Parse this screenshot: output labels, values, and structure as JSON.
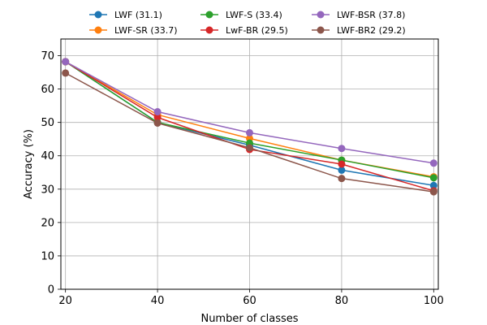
{
  "chart_data": {
    "type": "line",
    "title": "",
    "xlabel": "Number of classes",
    "ylabel": "Accuracy (%)",
    "x": [
      20,
      40,
      60,
      80,
      100
    ],
    "xlim": [
      19,
      101
    ],
    "ylim": [
      0,
      75
    ],
    "xticks": [
      20,
      40,
      60,
      80,
      100
    ],
    "yticks": [
      0,
      10,
      20,
      30,
      40,
      50,
      60,
      70
    ],
    "grid": true,
    "legend_position": "top-center",
    "legend_columns": 3,
    "series": [
      {
        "name": "LWF (31.1)",
        "color": "#1f77b4",
        "values": [
          68.2,
          50.0,
          43.2,
          35.7,
          31.1
        ]
      },
      {
        "name": "LWF-SR (33.7)",
        "color": "#ff7f0e",
        "values": [
          68.2,
          52.3,
          45.2,
          38.7,
          33.7
        ]
      },
      {
        "name": "LWF-S (33.4)",
        "color": "#2ca02c",
        "values": [
          68.2,
          50.0,
          43.8,
          38.7,
          33.4
        ]
      },
      {
        "name": "LwF-BR (29.5)",
        "color": "#d62728",
        "values": [
          68.2,
          51.5,
          41.9,
          37.5,
          29.5
        ]
      },
      {
        "name": "LWF-BSR (37.8)",
        "color": "#9467bd",
        "values": [
          68.2,
          53.2,
          46.9,
          42.2,
          37.8
        ]
      },
      {
        "name": "LWF-BR2 (29.2)",
        "color": "#8c564b",
        "values": [
          64.8,
          49.8,
          42.4,
          33.2,
          29.2
        ]
      }
    ]
  }
}
